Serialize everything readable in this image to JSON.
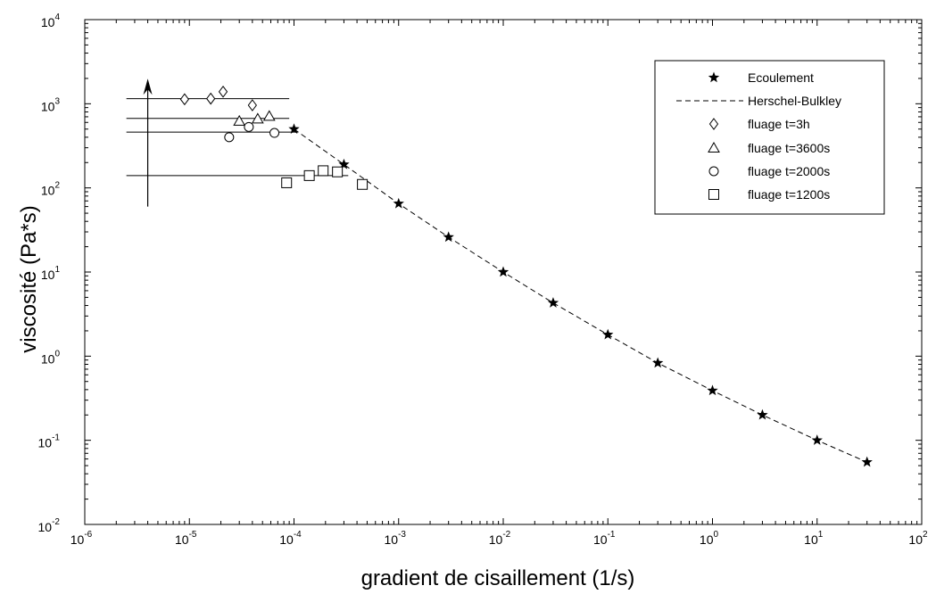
{
  "chart_data": {
    "type": "scatter",
    "title": "",
    "xlabel": "gradient de cisaillement (1/s)",
    "ylabel": "viscosité (Pa*s)",
    "xscale": "log",
    "yscale": "log",
    "xlim": [
      1e-06,
      100
    ],
    "ylim": [
      0.01,
      10000
    ],
    "x_ticks": [
      {
        "base": "10",
        "exp": "-6"
      },
      {
        "base": "10",
        "exp": "-5"
      },
      {
        "base": "10",
        "exp": "-4"
      },
      {
        "base": "10",
        "exp": "-3"
      },
      {
        "base": "10",
        "exp": "-2"
      },
      {
        "base": "10",
        "exp": "-1"
      },
      {
        "base": "10",
        "exp": "0"
      },
      {
        "base": "10",
        "exp": "1"
      },
      {
        "base": "10",
        "exp": "2"
      }
    ],
    "y_ticks": [
      {
        "base": "10",
        "exp": "-2"
      },
      {
        "base": "10",
        "exp": "-1"
      },
      {
        "base": "10",
        "exp": "0"
      },
      {
        "base": "10",
        "exp": "1"
      },
      {
        "base": "10",
        "exp": "2"
      },
      {
        "base": "10",
        "exp": "3"
      },
      {
        "base": "10",
        "exp": "4"
      }
    ],
    "legend_position": "top-right",
    "grid": false,
    "series": [
      {
        "name": "Ecoulement",
        "marker": "star",
        "points": [
          [
            0.0001,
            500
          ],
          [
            0.0003,
            190
          ],
          [
            0.001,
            65
          ],
          [
            0.003,
            26
          ],
          [
            0.01,
            10
          ],
          [
            0.03,
            4.3
          ],
          [
            0.1,
            1.8
          ],
          [
            0.3,
            0.83
          ],
          [
            1,
            0.39
          ],
          [
            3,
            0.2
          ],
          [
            10,
            0.1
          ],
          [
            30,
            0.055
          ]
        ]
      },
      {
        "name": "Herschel-Bulkley",
        "marker": "dashed-line",
        "points": [
          [
            0.0001,
            500
          ],
          [
            0.0003,
            190
          ],
          [
            0.001,
            65
          ],
          [
            0.003,
            26
          ],
          [
            0.01,
            10
          ],
          [
            0.03,
            4.3
          ],
          [
            0.1,
            1.8
          ],
          [
            0.3,
            0.83
          ],
          [
            1,
            0.39
          ],
          [
            3,
            0.2
          ],
          [
            10,
            0.1
          ],
          [
            30,
            0.055
          ]
        ]
      },
      {
        "name": "fluage t=3h",
        "marker": "diamond",
        "plateau": 1150,
        "plateau_range": [
          2.5e-06,
          9e-05
        ],
        "points": [
          [
            9e-06,
            1130
          ],
          [
            1.6e-05,
            1150
          ],
          [
            2.1e-05,
            1390
          ],
          [
            4e-05,
            960
          ]
        ]
      },
      {
        "name": "fluage t=3600s",
        "marker": "triangle",
        "plateau": 670,
        "plateau_range": [
          2.5e-06,
          9e-05
        ],
        "points": [
          [
            3e-05,
            620
          ],
          [
            4.5e-05,
            660
          ],
          [
            5.8e-05,
            710
          ]
        ]
      },
      {
        "name": "fluage t=2000s",
        "marker": "circle",
        "plateau": 460,
        "plateau_range": [
          2.5e-06,
          0.00011
        ],
        "points": [
          [
            2.4e-05,
            400
          ],
          [
            3.7e-05,
            530
          ],
          [
            6.5e-05,
            450
          ]
        ]
      },
      {
        "name": "fluage t=1200s",
        "marker": "square",
        "plateau": 140,
        "plateau_range": [
          2.5e-06,
          0.00033
        ],
        "points": [
          [
            8.5e-05,
            115
          ],
          [
            0.00014,
            140
          ],
          [
            0.00019,
            160
          ],
          [
            0.00026,
            155
          ],
          [
            0.00045,
            110
          ]
        ]
      }
    ],
    "annotations": [
      {
        "type": "arrow",
        "x": 4e-06,
        "y_from": 60,
        "y_to": 1800
      }
    ]
  }
}
